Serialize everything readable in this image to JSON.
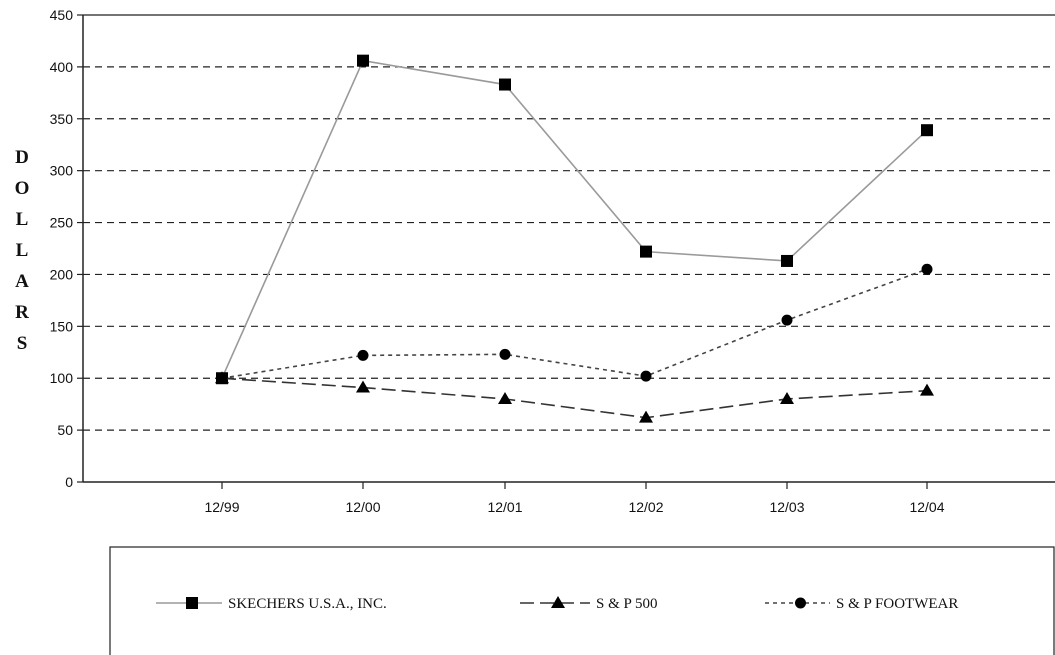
{
  "chart_data": {
    "type": "line",
    "title": "",
    "xlabel": "",
    "ylabel": "DOLLARS",
    "categories": [
      "12/99",
      "12/00",
      "12/01",
      "12/02",
      "12/03",
      "12/04"
    ],
    "ylim": [
      0,
      450
    ],
    "yticks": [
      0,
      50,
      100,
      150,
      200,
      250,
      300,
      350,
      400,
      450
    ],
    "grid": "horizontal-dashed",
    "legend_position": "bottom",
    "series": [
      {
        "name": "SKECHERS U.S.A., INC.",
        "values": [
          100,
          406,
          383,
          222,
          213,
          339
        ],
        "marker": "square",
        "line": "solid",
        "color": "#9a9a9a"
      },
      {
        "name": "S & P 500",
        "values": [
          100,
          91,
          80,
          62,
          80,
          88
        ],
        "marker": "triangle",
        "line": "dashed",
        "color": "#333333"
      },
      {
        "name": "S & P FOOTWEAR",
        "values": [
          100,
          122,
          123,
          102,
          156,
          205
        ],
        "marker": "circle",
        "line": "dotted",
        "color": "#444444"
      }
    ]
  }
}
